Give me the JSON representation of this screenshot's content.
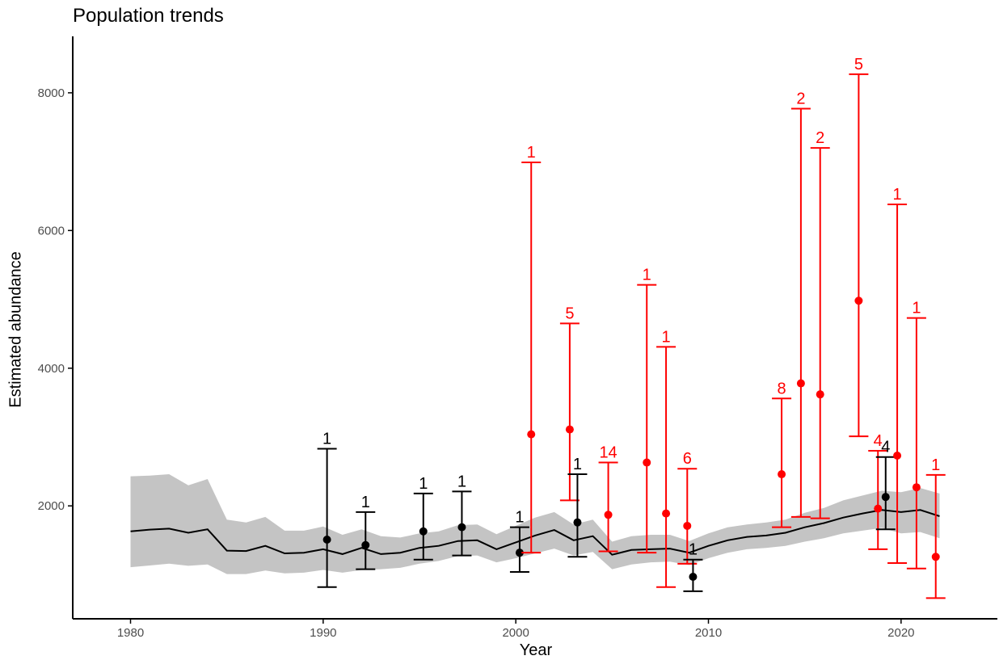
{
  "chart_data": {
    "type": "line",
    "title": "Population trends",
    "xlabel": "Year",
    "ylabel": "Estimated abundance",
    "xlim": [
      1977,
      2025
    ],
    "ylim": [
      360,
      8820
    ],
    "x_ticks": [
      1980,
      1990,
      2000,
      2010,
      2020
    ],
    "y_ticks": [
      2000,
      4000,
      6000,
      8000
    ],
    "grid": false,
    "trend": {
      "years": [
        1980,
        1981,
        1982,
        1983,
        1984,
        1985,
        1986,
        1987,
        1988,
        1989,
        1990,
        1991,
        1992,
        1993,
        1994,
        1995,
        1996,
        1997,
        1998,
        1999,
        2000,
        2001,
        2002,
        2003,
        2004,
        2005,
        2006,
        2007,
        2008,
        2009,
        2010,
        2011,
        2012,
        2013,
        2014,
        2015,
        2016,
        2017,
        2018,
        2019,
        2020,
        2021,
        2022
      ],
      "mean": [
        1630,
        1655,
        1670,
        1610,
        1660,
        1350,
        1345,
        1420,
        1310,
        1320,
        1370,
        1300,
        1390,
        1300,
        1320,
        1390,
        1420,
        1490,
        1500,
        1370,
        1470,
        1570,
        1650,
        1500,
        1560,
        1290,
        1360,
        1370,
        1380,
        1320,
        1420,
        1500,
        1550,
        1570,
        1610,
        1690,
        1750,
        1830,
        1890,
        1940,
        1910,
        1940,
        1850
      ],
      "lower": [
        1110,
        1135,
        1160,
        1130,
        1150,
        1010,
        1010,
        1060,
        1020,
        1030,
        1070,
        1030,
        1070,
        1080,
        1100,
        1160,
        1200,
        1270,
        1280,
        1180,
        1240,
        1310,
        1380,
        1280,
        1330,
        1080,
        1150,
        1180,
        1190,
        1140,
        1240,
        1320,
        1370,
        1390,
        1420,
        1480,
        1530,
        1600,
        1640,
        1680,
        1600,
        1620,
        1530
      ],
      "upper": [
        2430,
        2440,
        2460,
        2300,
        2390,
        1800,
        1760,
        1840,
        1640,
        1640,
        1700,
        1580,
        1660,
        1560,
        1540,
        1600,
        1630,
        1720,
        1730,
        1590,
        1710,
        1830,
        1910,
        1730,
        1800,
        1480,
        1560,
        1580,
        1580,
        1490,
        1600,
        1690,
        1730,
        1760,
        1800,
        1900,
        1970,
        2080,
        2150,
        2220,
        2200,
        2260,
        2180
      ]
    },
    "observations": [
      {
        "x": 1990.2,
        "y": 1510,
        "low": 820,
        "high": 2830,
        "label": "1",
        "type": "black"
      },
      {
        "x": 1992.2,
        "y": 1430,
        "low": 1080,
        "high": 1910,
        "label": "1",
        "type": "black"
      },
      {
        "x": 1995.2,
        "y": 1630,
        "low": 1220,
        "high": 2180,
        "label": "1",
        "type": "black"
      },
      {
        "x": 1997.2,
        "y": 1690,
        "low": 1280,
        "high": 2210,
        "label": "1",
        "type": "black"
      },
      {
        "x": 2000.2,
        "y": 1320,
        "low": 1040,
        "high": 1690,
        "label": "1",
        "type": "black"
      },
      {
        "x": 2000.8,
        "y": 3040,
        "low": 1320,
        "high": 6990,
        "label": "1",
        "type": "red"
      },
      {
        "x": 2002.8,
        "y": 3110,
        "low": 2080,
        "high": 4650,
        "label": "5",
        "type": "red"
      },
      {
        "x": 2003.2,
        "y": 1760,
        "low": 1260,
        "high": 2460,
        "label": "1",
        "type": "black"
      },
      {
        "x": 2004.8,
        "y": 1870,
        "low": 1340,
        "high": 2630,
        "label": "14",
        "type": "red"
      },
      {
        "x": 2006.8,
        "y": 2630,
        "low": 1320,
        "high": 5210,
        "label": "1",
        "type": "red"
      },
      {
        "x": 2007.8,
        "y": 1890,
        "low": 820,
        "high": 4310,
        "label": "1",
        "type": "red"
      },
      {
        "x": 2008.9,
        "y": 1710,
        "low": 1160,
        "high": 2540,
        "label": "6",
        "type": "red"
      },
      {
        "x": 2009.2,
        "y": 970,
        "low": 760,
        "high": 1220,
        "label": "1",
        "type": "black"
      },
      {
        "x": 2013.8,
        "y": 2460,
        "low": 1690,
        "high": 3560,
        "label": "8",
        "type": "red"
      },
      {
        "x": 2014.8,
        "y": 3780,
        "low": 1840,
        "high": 7770,
        "label": "2",
        "type": "red"
      },
      {
        "x": 2015.8,
        "y": 3620,
        "low": 1820,
        "high": 7200,
        "label": "2",
        "type": "red"
      },
      {
        "x": 2017.8,
        "y": 4980,
        "low": 3010,
        "high": 8270,
        "label": "5",
        "type": "red"
      },
      {
        "x": 2018.8,
        "y": 1960,
        "low": 1370,
        "high": 2800,
        "label": "4",
        "type": "red"
      },
      {
        "x": 2019.2,
        "y": 2130,
        "low": 1660,
        "high": 2710,
        "label": "4",
        "type": "black"
      },
      {
        "x": 2019.8,
        "y": 2730,
        "low": 1170,
        "high": 6380,
        "label": "1",
        "type": "red"
      },
      {
        "x": 2020.8,
        "y": 2270,
        "low": 1090,
        "high": 4730,
        "label": "1",
        "type": "red"
      },
      {
        "x": 2021.8,
        "y": 1260,
        "low": 660,
        "high": 2450,
        "label": "1",
        "type": "red"
      }
    ],
    "colors": {
      "band": "#c4c4c4",
      "line": "#000000",
      "black_obs": "#000000",
      "red_obs": "#ff0000",
      "axis": "#000000",
      "tick_text": "#4d4d4d"
    }
  }
}
